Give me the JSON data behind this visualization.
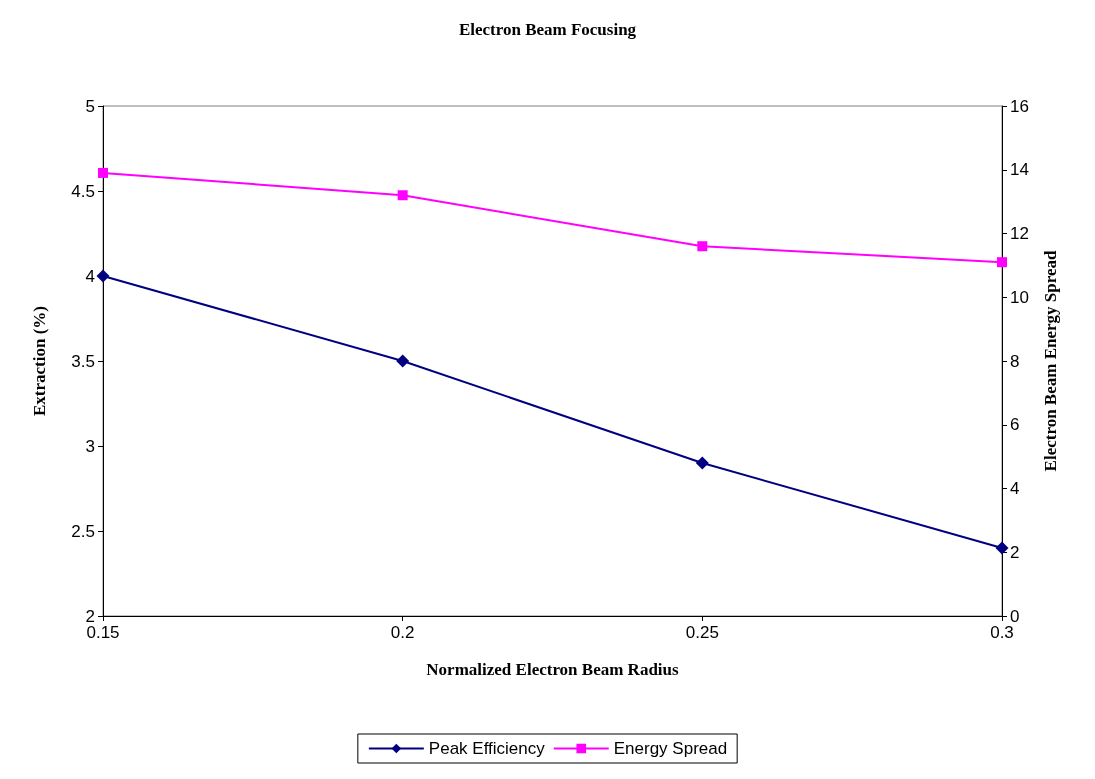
{
  "chart_data": {
    "type": "line",
    "title": "Electron Beam Focusing",
    "xlabel": "Normalized Electron Beam Radius",
    "ylabel": "Extraction (%)",
    "y2label": "Electron Beam Energy Spread",
    "x": [
      0.15,
      0.2,
      0.25,
      0.3
    ],
    "series": [
      {
        "name": "Peak Efficiency",
        "color": "#000080",
        "marker": "diamond",
        "values": [
          4.0,
          3.5,
          2.9,
          2.4
        ]
      },
      {
        "name": "Energy Spread",
        "color": "#ff00ff",
        "marker": "square",
        "axis": "y2",
        "values": [
          13.9,
          13.2,
          11.6,
          11.1
        ]
      }
    ],
    "xlim": [
      0.15,
      0.3
    ],
    "xticks": [
      0.15,
      0.2,
      0.25,
      0.3
    ],
    "ylim": [
      2,
      5
    ],
    "yticks": [
      2,
      2.5,
      3,
      3.5,
      4,
      4.5,
      5
    ],
    "y2lim": [
      0,
      16
    ],
    "y2ticks": [
      0,
      2,
      4,
      6,
      8,
      10,
      12,
      14,
      16
    ],
    "grid": false,
    "legend": "bottom",
    "line_style": "solid"
  }
}
